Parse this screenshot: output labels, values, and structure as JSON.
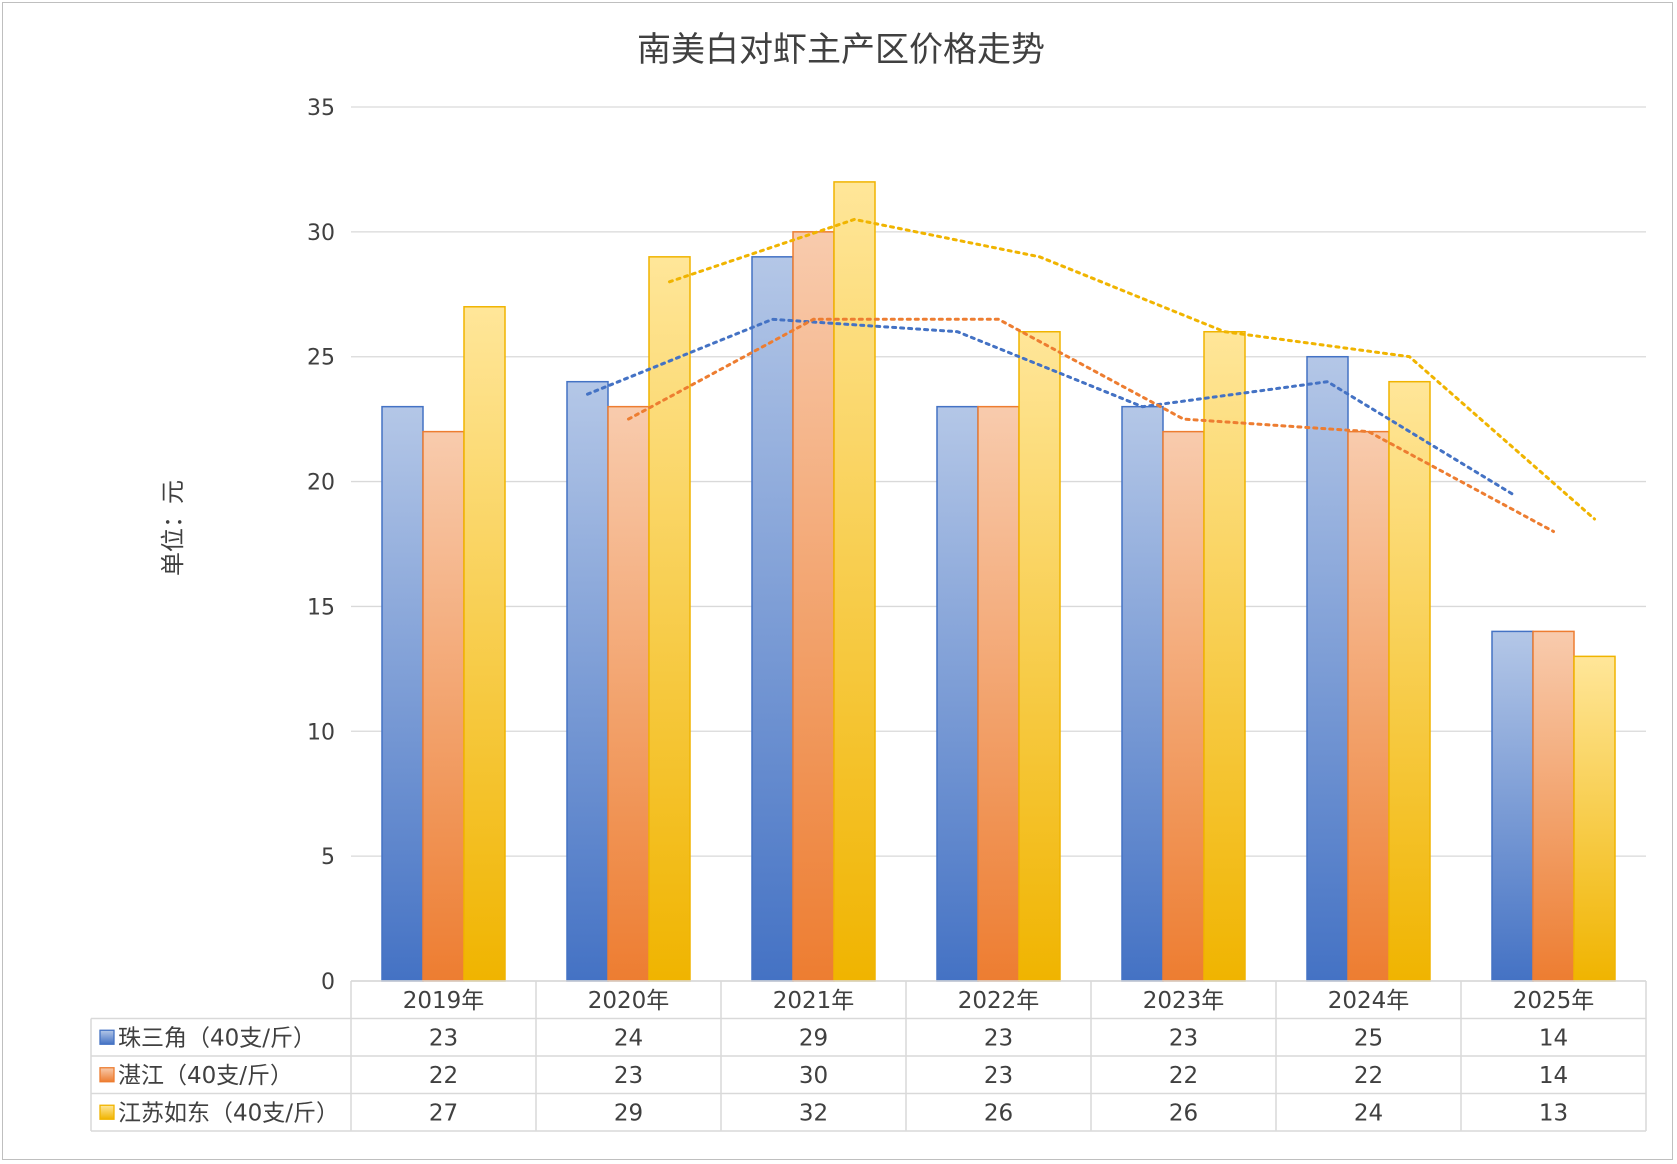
{
  "chart_data": {
    "type": "bar",
    "title": "南美白对虾主产区价格走势",
    "ylabel": "单位：元",
    "xlabel": "",
    "ylim": [
      0,
      35
    ],
    "yticks": [
      0,
      5,
      10,
      15,
      20,
      25,
      30,
      35
    ],
    "grid": true,
    "legend": "data-table-left",
    "categories": [
      "2019年",
      "2020年",
      "2021年",
      "2022年",
      "2023年",
      "2024年",
      "2025年"
    ],
    "series": [
      {
        "name": "珠三角（40支/斤）",
        "color": "#4472c4",
        "light": "#b4c7e7",
        "values": [
          23,
          24,
          29,
          23,
          23,
          25,
          14
        ]
      },
      {
        "name": "湛江（40支/斤）",
        "color": "#ed7d31",
        "light": "#f8cbad",
        "values": [
          22,
          23,
          30,
          23,
          22,
          22,
          14
        ]
      },
      {
        "name": "江苏如东（40支/斤）",
        "color": "#f0b400",
        "light": "#ffe699",
        "values": [
          27,
          29,
          32,
          26,
          26,
          24,
          13
        ]
      }
    ],
    "trendlines": "2-period moving average (dotted)"
  }
}
